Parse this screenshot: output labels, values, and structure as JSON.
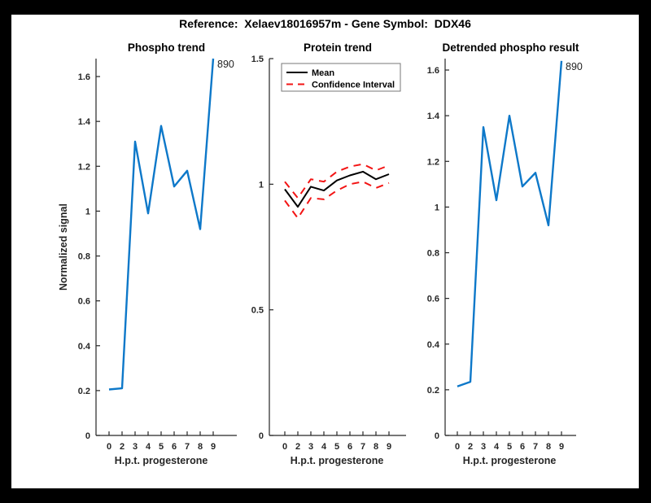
{
  "figure": {
    "title": "Reference:  Xelaev18016957m - Gene Symbol:  DDX46",
    "frame_color": "#000000",
    "background": "#ffffff",
    "accent_blue": "#0d78c9",
    "accent_red": "#f31414"
  },
  "chart_data": [
    {
      "type": "line",
      "title": "Phospho trend",
      "xlabel": "H.p.t. progesterone",
      "ylabel": "Normalized signal",
      "x": [
        0,
        2,
        3,
        4,
        5,
        6,
        7,
        8,
        9
      ],
      "x_ticklabels": [
        "0",
        "2",
        "3",
        "4",
        "5",
        "6",
        "7",
        "8",
        "9"
      ],
      "ylim": [
        0,
        1.68
      ],
      "ytick_values": [
        0,
        0.2,
        0.4,
        0.6,
        0.8,
        1.0,
        1.2,
        1.4,
        1.6
      ],
      "ytick_labels": [
        "0",
        "0.2",
        "0.4",
        "0.6",
        "0.8",
        "1",
        "1.2",
        "1.4",
        "1.6"
      ],
      "grid": false,
      "legend": null,
      "series": [
        {
          "name": "phospho-signal",
          "color": "#0d78c9",
          "style": "solid",
          "width": 2.4,
          "values": [
            0.205,
            0.21,
            1.31,
            0.99,
            1.38,
            1.11,
            1.18,
            0.92,
            1.68
          ]
        }
      ],
      "annotation": {
        "text": "890",
        "series": 0,
        "point_index": 8
      }
    },
    {
      "type": "line",
      "title": "Protein trend",
      "xlabel": "H.p.t. progesterone",
      "ylabel": "",
      "x": [
        0,
        2,
        3,
        4,
        5,
        6,
        7,
        8,
        9
      ],
      "x_ticklabels": [
        "0",
        "2",
        "3",
        "4",
        "5",
        "6",
        "7",
        "8",
        "9"
      ],
      "ylim": [
        0,
        1.5
      ],
      "ytick_values": [
        0,
        0.5,
        1.0,
        1.5
      ],
      "ytick_labels": [
        "0",
        "0.5",
        "1",
        "1.5"
      ],
      "grid": false,
      "legend": {
        "position": "top-left",
        "entries": [
          {
            "label": "Mean",
            "color": "#000000",
            "style": "solid"
          },
          {
            "label": "Confidence Interval",
            "color": "#f31414",
            "style": "dashed"
          }
        ]
      },
      "series": [
        {
          "name": "mean",
          "color": "#000000",
          "style": "solid",
          "width": 2,
          "values": [
            0.98,
            0.91,
            0.99,
            0.975,
            1.015,
            1.035,
            1.05,
            1.02,
            1.04
          ]
        },
        {
          "name": "confidence-interval-upper",
          "color": "#f31414",
          "style": "dashed",
          "width": 2,
          "values": [
            1.01,
            0.945,
            1.02,
            1.01,
            1.05,
            1.07,
            1.08,
            1.055,
            1.075
          ]
        },
        {
          "name": "confidence-interval-lower",
          "color": "#f31414",
          "style": "dashed",
          "width": 2,
          "values": [
            0.935,
            0.865,
            0.945,
            0.94,
            0.975,
            1.0,
            1.01,
            0.985,
            1.005
          ]
        }
      ],
      "annotation": null
    },
    {
      "type": "line",
      "title": "Detrended phospho result",
      "xlabel": "H.p.t. progesterone",
      "ylabel": "",
      "x": [
        0,
        2,
        3,
        4,
        5,
        6,
        7,
        8,
        9
      ],
      "x_ticklabels": [
        "0",
        "2",
        "3",
        "4",
        "5",
        "6",
        "7",
        "8",
        "9"
      ],
      "ylim": [
        0,
        1.65
      ],
      "ytick_values": [
        0,
        0.2,
        0.4,
        0.6,
        0.8,
        1.0,
        1.2,
        1.4,
        1.6
      ],
      "ytick_labels": [
        "0",
        "0.2",
        "0.4",
        "0.6",
        "0.8",
        "1",
        "1.2",
        "1.4",
        "1.6"
      ],
      "grid": false,
      "legend": null,
      "series": [
        {
          "name": "detrended-phospho-signal",
          "color": "#0d78c9",
          "style": "solid",
          "width": 2.4,
          "values": [
            0.215,
            0.235,
            1.35,
            1.03,
            1.4,
            1.09,
            1.15,
            0.92,
            1.64
          ]
        }
      ],
      "annotation": {
        "text": "890",
        "series": 0,
        "point_index": 8
      }
    }
  ]
}
